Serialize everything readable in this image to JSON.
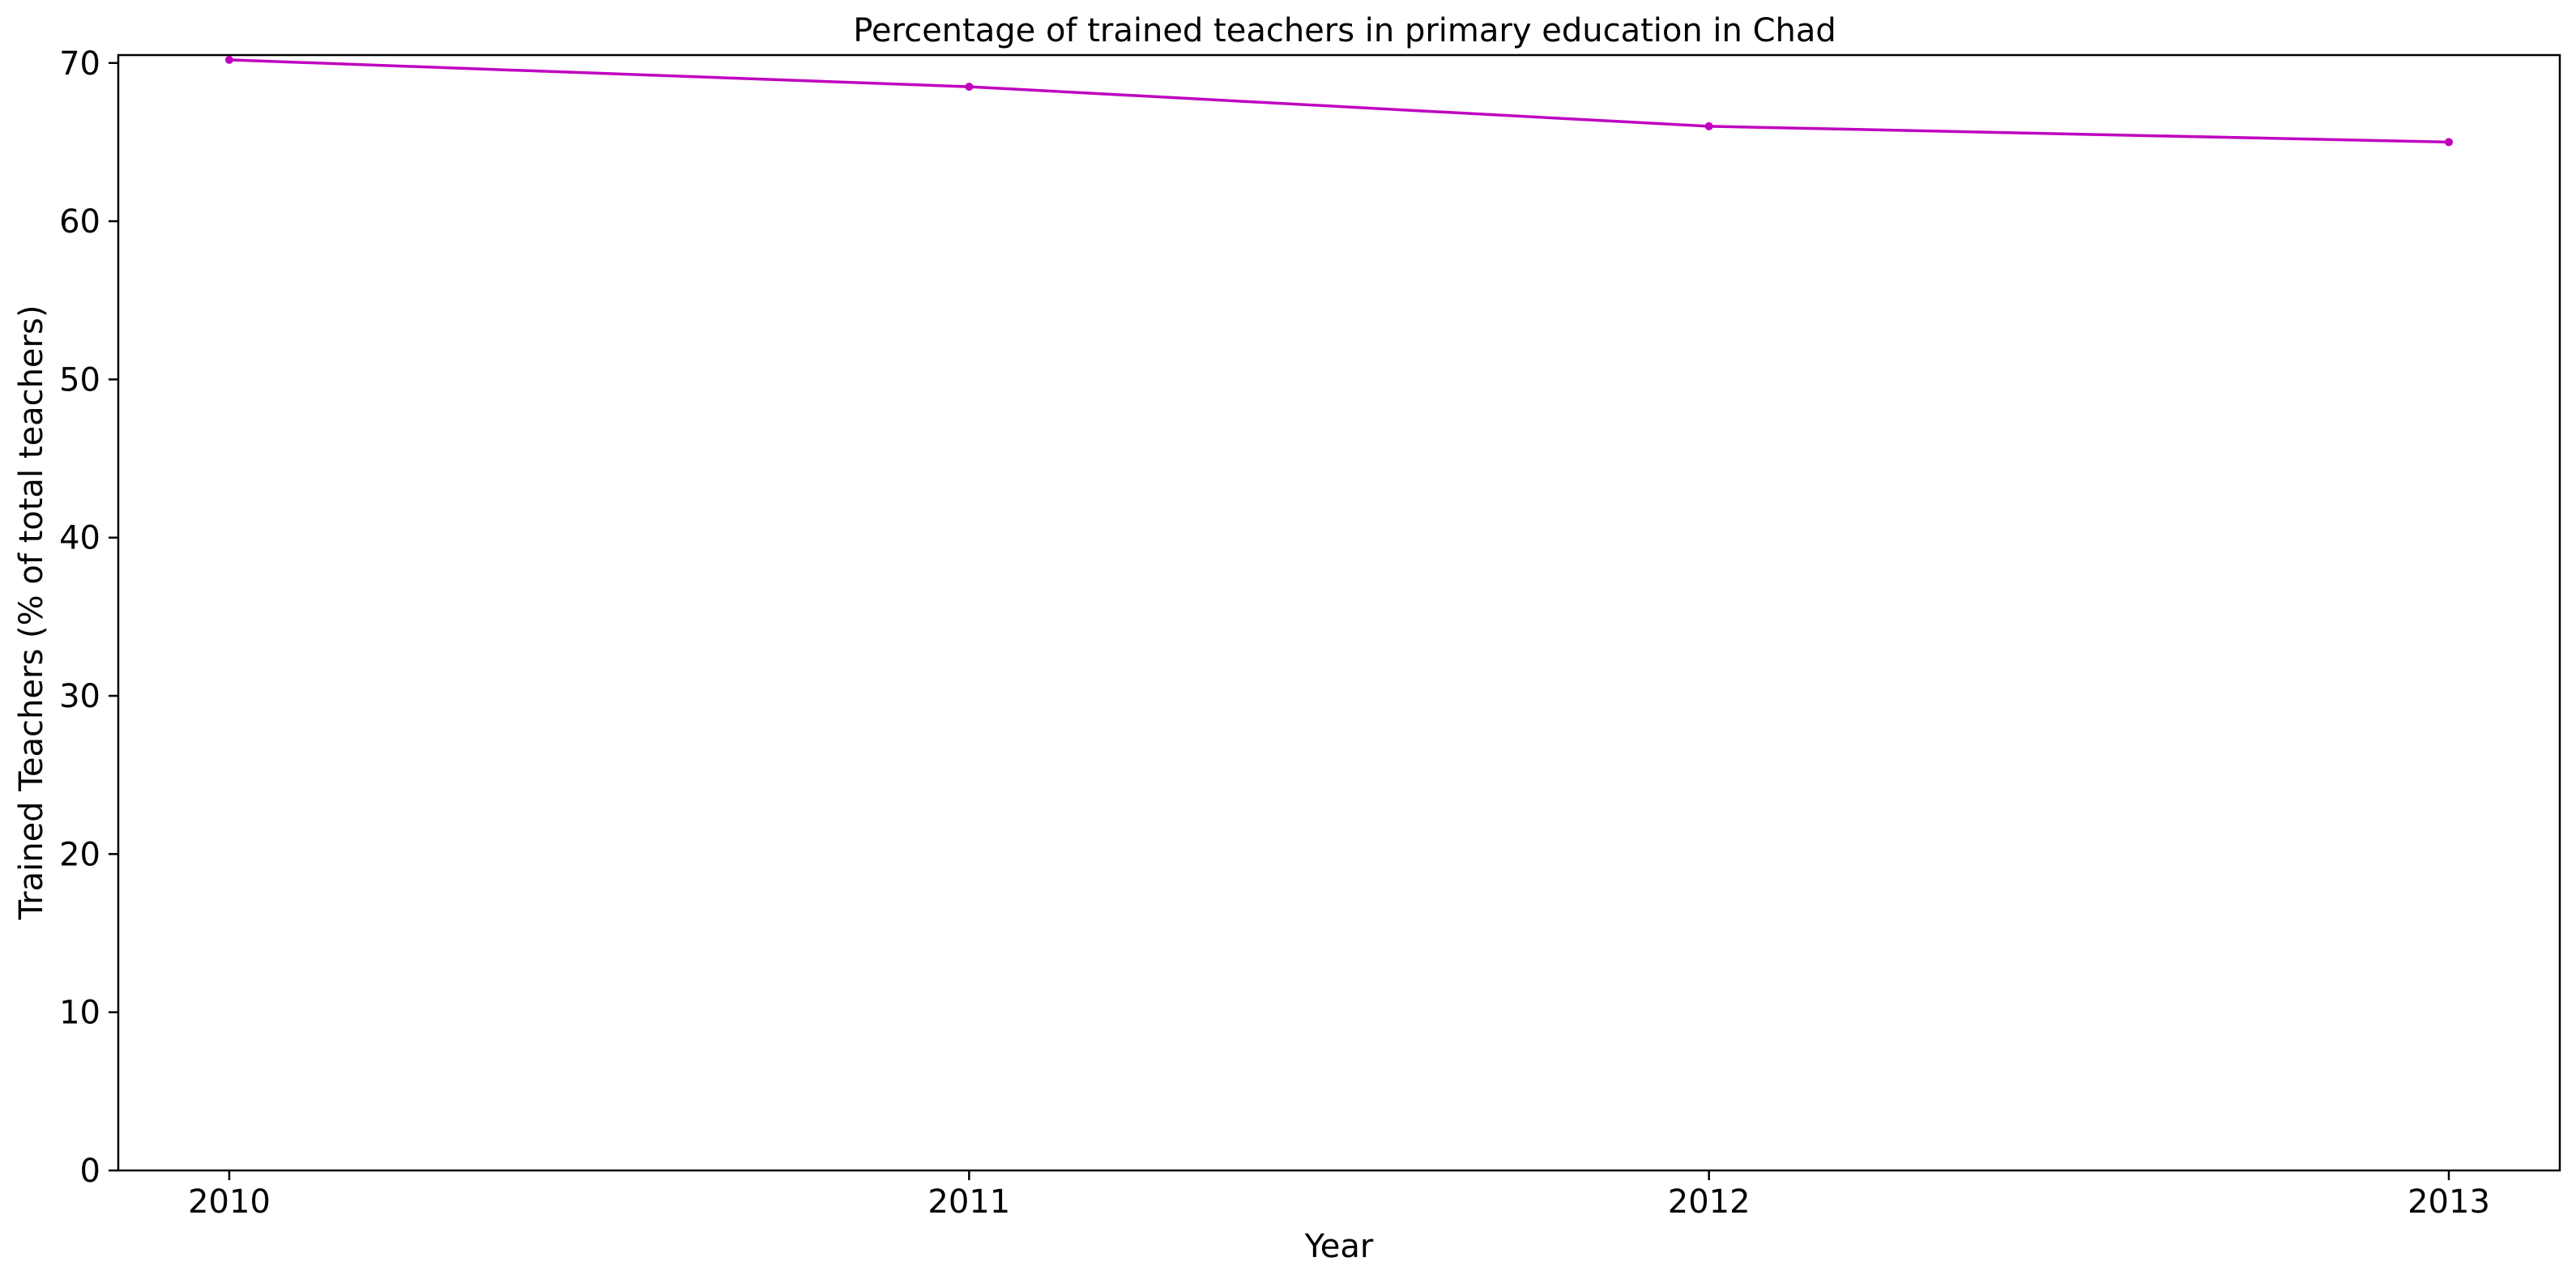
{
  "chart_data": {
    "type": "line",
    "title": "Percentage of trained teachers in primary education in Chad",
    "xlabel": "Year",
    "ylabel": "Trained Teachers (% of total teachers)",
    "x": [
      "2010",
      "2011",
      "2012",
      "2013"
    ],
    "series": [
      {
        "values": [
          70.2,
          68.5,
          66.0,
          65.0
        ],
        "color": "#bf00bf"
      }
    ],
    "ylim": [
      0,
      70.5
    ],
    "yticks": [
      0,
      10,
      20,
      30,
      40,
      50,
      60,
      70
    ],
    "grid": false,
    "legend": "none"
  }
}
